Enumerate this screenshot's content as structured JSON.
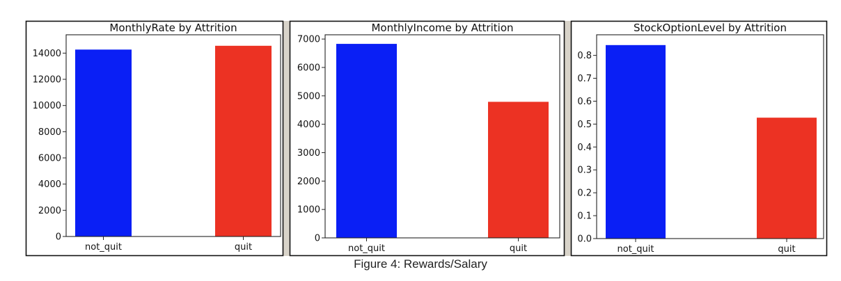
{
  "caption": "Figure 4: Rewards/Salary",
  "colors": {
    "bar_not_quit": "#0a1ff5",
    "bar_quit": "#ec3223",
    "separator": "#d8d3c9",
    "frame": "#111111"
  },
  "chart_data": [
    {
      "type": "bar",
      "title": "MonthlyRate by Attrition",
      "categories": [
        "not_quit",
        "quit"
      ],
      "values": [
        14270,
        14560
      ],
      "ylim": [
        0,
        15400
      ],
      "yticks": [
        0,
        2000,
        4000,
        6000,
        8000,
        10000,
        12000,
        14000
      ],
      "ytick_labels": [
        "0",
        "2000",
        "4000",
        "6000",
        "8000",
        "10000",
        "12000",
        "14000"
      ],
      "xlabel": "",
      "ylabel": "",
      "grid": false
    },
    {
      "type": "bar",
      "title": "MonthlyIncome by Attrition",
      "categories": [
        "not_quit",
        "quit"
      ],
      "values": [
        6830,
        4790
      ],
      "ylim": [
        0,
        7150
      ],
      "yticks": [
        0,
        1000,
        2000,
        3000,
        4000,
        5000,
        6000,
        7000
      ],
      "ytick_labels": [
        "0",
        "1000",
        "2000",
        "3000",
        "4000",
        "5000",
        "6000",
        "7000"
      ],
      "xlabel": "",
      "ylabel": "",
      "grid": false
    },
    {
      "type": "bar",
      "title": "StockOptionLevel by Attrition",
      "categories": [
        "not_quit",
        "quit"
      ],
      "values": [
        0.845,
        0.528
      ],
      "ylim": [
        0,
        0.89
      ],
      "yticks": [
        0,
        0.1,
        0.2,
        0.3,
        0.4,
        0.5,
        0.6,
        0.7,
        0.8
      ],
      "ytick_labels": [
        "0.0",
        "0.1",
        "0.2",
        "0.3",
        "0.4",
        "0.5",
        "0.6",
        "0.7",
        "0.8"
      ],
      "xlabel": "",
      "ylabel": "",
      "grid": false
    }
  ]
}
